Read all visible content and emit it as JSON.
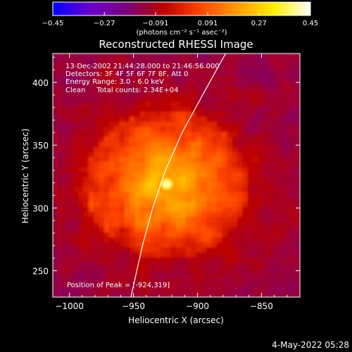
{
  "chart_data": {
    "type": "heatmap",
    "title": "Reconstructed RHESSI Image",
    "xlabel": "Heliocentric X (arcsec)",
    "ylabel": "Heliocentric Y (arcsec)",
    "xlim": [
      -1013,
      -820
    ],
    "ylim": [
      229,
      423
    ],
    "x_ticks": [
      -1000,
      -950,
      -900,
      -850
    ],
    "y_ticks": [
      250,
      300,
      350,
      400
    ],
    "x_tick_labels": [
      "−1000",
      "−950",
      "−900",
      "−850"
    ],
    "y_tick_labels": [
      "250",
      "300",
      "350",
      "400"
    ],
    "colorbar": {
      "min": -0.45,
      "max": 0.45,
      "ticks": [
        -0.45,
        -0.27,
        -0.091,
        0.091,
        0.27,
        0.45
      ],
      "tick_labels": [
        "−0.45",
        "−0.27",
        "−0.091",
        "0.091",
        "0.27",
        "0.45"
      ],
      "label": "(photons cm⁻² s⁻¹ asec⁻²)",
      "colormap": [
        "#0000ff",
        "#6a00cc",
        "#7a007a",
        "#bb0000",
        "#ff4400",
        "#ff9900",
        "#ffee00",
        "#ffffff"
      ]
    },
    "annotations": [
      "13-Dec-2002 21:44:28.000 to 21:46:56.000",
      "Detectors: 3F 4F 5F 6F 7F 8F, Att 0",
      "Energy Range: 3.0 - 6.0 keV",
      "Clean     Total counts: 2.34E+04"
    ],
    "peak_label": "Position of Peak = [-924,319]",
    "peak": [
      -924,
      319
    ],
    "limb_curve": [
      [
        -952,
        229
      ],
      [
        -943,
        270
      ],
      [
        -935,
        300
      ],
      [
        -925,
        330
      ],
      [
        -912,
        360
      ],
      [
        -896,
        390
      ],
      [
        -878,
        423
      ]
    ],
    "grid": false,
    "background_level": -0.1
  },
  "footer": {
    "timestamp": "4-May-2022 05:28"
  }
}
